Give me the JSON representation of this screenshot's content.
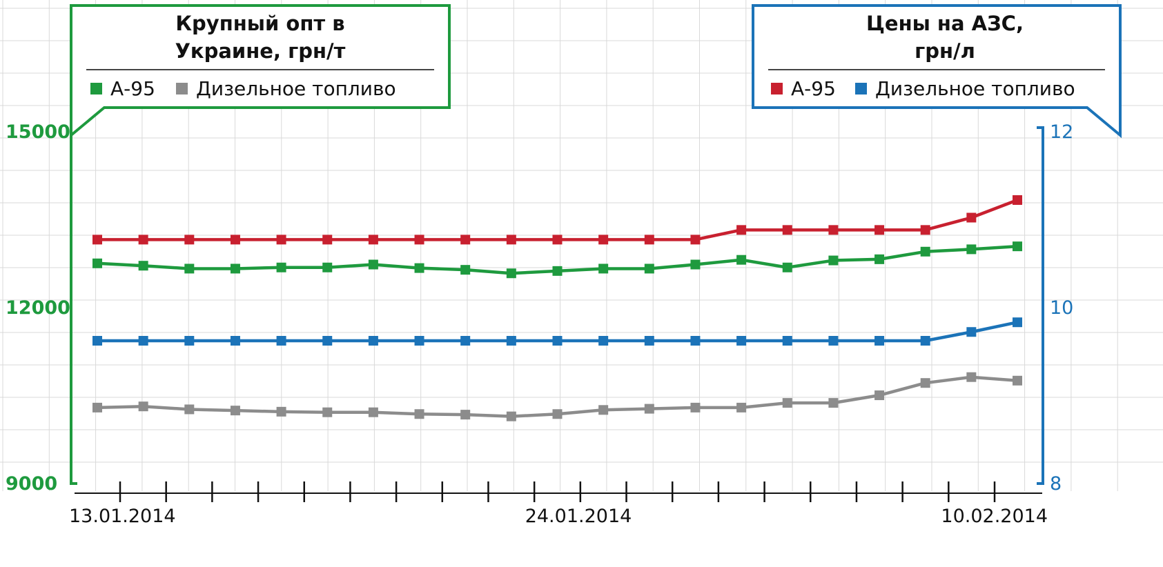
{
  "chart_data": {
    "type": "line",
    "dates": [
      "13.01.2014",
      "14.01.2014",
      "15.01.2014",
      "16.01.2014",
      "17.01.2014",
      "20.01.2014",
      "21.01.2014",
      "22.01.2014",
      "23.01.2014",
      "24.01.2014",
      "27.01.2014",
      "28.01.2014",
      "29.01.2014",
      "30.01.2014",
      "31.01.2014",
      "03.02.2014",
      "04.02.2014",
      "05.02.2014",
      "06.02.2014",
      "07.02.2014",
      "10.02.2014"
    ],
    "x_tick_labels": [
      "13.01.2014",
      "24.01.2014",
      "10.02.2014"
    ],
    "left_axis": {
      "title": "Крупный опт в\nУкраине, грн/т",
      "ticks": [
        "15000",
        "12000",
        "9000"
      ],
      "ylim": [
        9000,
        15000
      ],
      "color": "#1e9a3e"
    },
    "right_axis": {
      "title": "Цены на АЗС,\nгрн/л",
      "ticks": [
        "12",
        "10",
        "8"
      ],
      "ylim": [
        8,
        12
      ],
      "color": "#1b73b8"
    },
    "left_legend": [
      {
        "label": "А-95",
        "color": "#1e9a3e"
      },
      {
        "label": "Дизельное топливо",
        "color": "#8c8c8c"
      }
    ],
    "right_legend": [
      {
        "label": "А-95",
        "color": "#c8202f"
      },
      {
        "label": "Дизельное топливо",
        "color": "#1b73b8"
      }
    ],
    "series": [
      {
        "axis": "left",
        "color": "#1e9a3e",
        "values": [
          12720,
          12680,
          12630,
          12630,
          12650,
          12650,
          12700,
          12640,
          12610,
          12550,
          12590,
          12630,
          12630,
          12700,
          12780,
          12650,
          12770,
          12790,
          12920,
          12960,
          13010
        ]
      },
      {
        "axis": "left",
        "color": "#8c8c8c",
        "values": [
          10260,
          10280,
          10230,
          10210,
          10190,
          10180,
          10180,
          10150,
          10140,
          10110,
          10150,
          10220,
          10240,
          10260,
          10260,
          10340,
          10340,
          10470,
          10680,
          10780,
          10720
        ]
      },
      {
        "axis": "right",
        "color": "#c8202f",
        "values": [
          10.75,
          10.75,
          10.75,
          10.75,
          10.75,
          10.75,
          10.75,
          10.75,
          10.75,
          10.75,
          10.75,
          10.75,
          10.75,
          10.75,
          10.86,
          10.86,
          10.86,
          10.86,
          10.86,
          11.0,
          11.2
        ]
      },
      {
        "axis": "right",
        "color": "#1b73b8",
        "values": [
          9.6,
          9.6,
          9.6,
          9.6,
          9.6,
          9.6,
          9.6,
          9.6,
          9.6,
          9.6,
          9.6,
          9.6,
          9.6,
          9.6,
          9.6,
          9.6,
          9.6,
          9.6,
          9.6,
          9.7,
          9.81
        ]
      }
    ],
    "grid": true
  }
}
